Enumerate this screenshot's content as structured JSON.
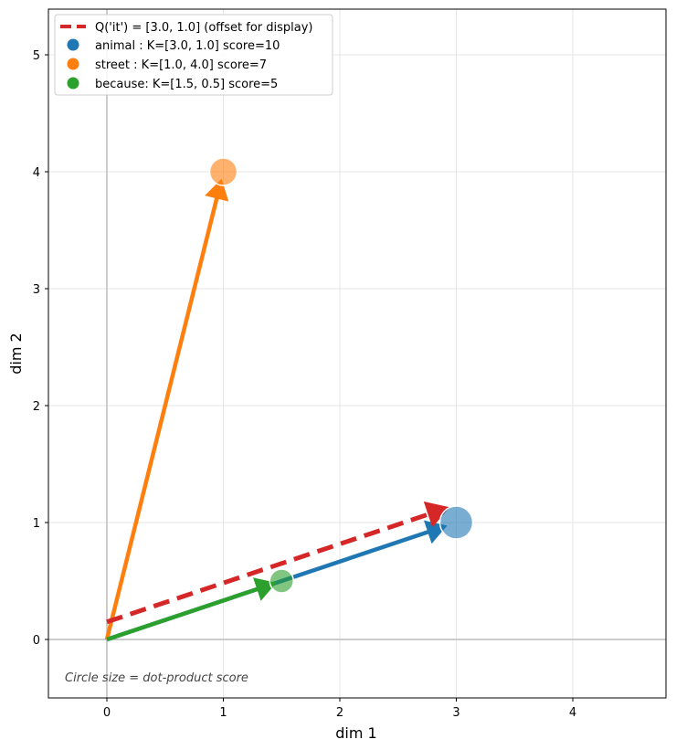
{
  "chart_data": {
    "type": "scatter",
    "title": "",
    "xlabel": "dim 1",
    "ylabel": "dim 2",
    "xlim": [
      -0.5,
      4.8
    ],
    "ylim": [
      -0.5,
      5.4
    ],
    "xticks": [
      0,
      1,
      2,
      3,
      4
    ],
    "yticks": [
      0,
      1,
      2,
      3,
      4,
      5
    ],
    "grid": true,
    "legend_position": "upper left",
    "query": {
      "label": "Q('it') = [3.0, 1.0] (offset for display)",
      "from": [
        0,
        0.15
      ],
      "to": [
        3.0,
        1.15
      ],
      "color": "#d62728",
      "style": "dashed"
    },
    "series": [
      {
        "name": "animal",
        "label": "animal : K=[3.0, 1.0]  score=10",
        "x": 3.0,
        "y": 1.0,
        "score": 10,
        "color": "#1f77b4"
      },
      {
        "name": "street",
        "label": "street : K=[1.0, 4.0]  score=7",
        "x": 1.0,
        "y": 4.0,
        "score": 7,
        "color": "#ff7f0e"
      },
      {
        "name": "because",
        "label": "because: K=[1.5, 0.5]  score=5",
        "x": 1.5,
        "y": 0.5,
        "score": 5,
        "color": "#2ca02c"
      }
    ],
    "annotation": "Circle size = dot-product score"
  }
}
